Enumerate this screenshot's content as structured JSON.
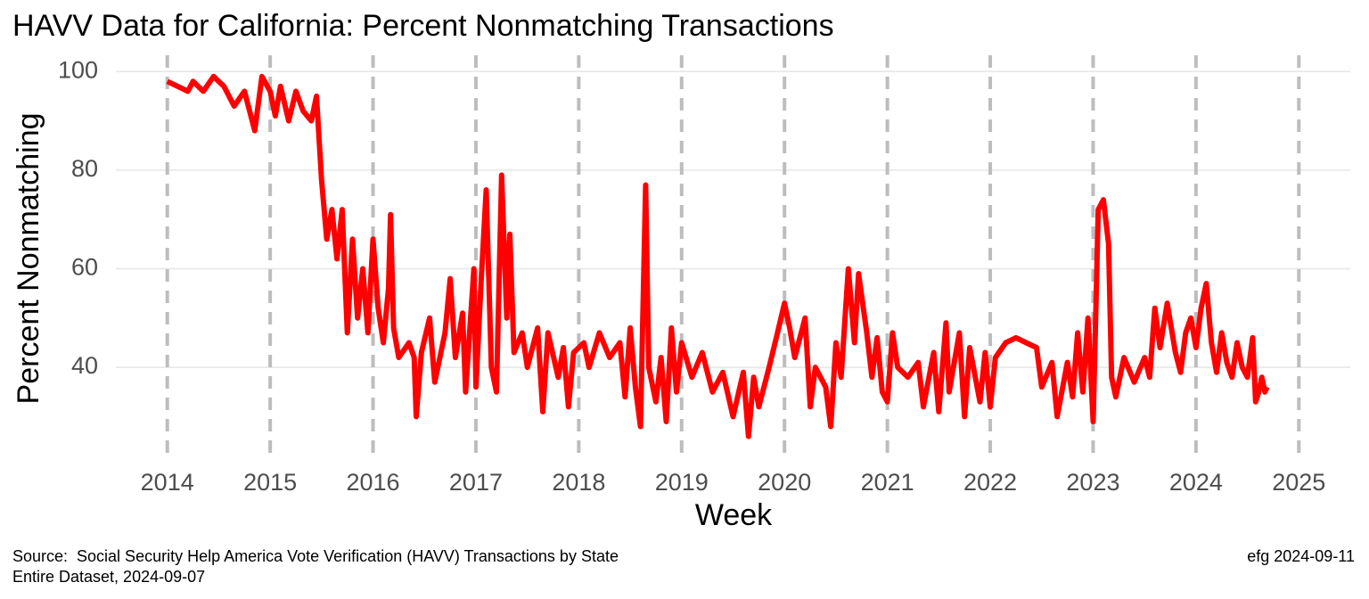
{
  "chart_data": {
    "type": "line",
    "title": "HAVV Data for California:  Percent Nonmatching Transactions",
    "x_label": "Week",
    "y_label": "Percent Nonmatching",
    "caption_left": [
      "Source:  Social Security Help America Vote Verification (HAVV) Transactions by State",
      "Entire Dataset, 2024-09-07"
    ],
    "caption_right": "efg 2024-09-11",
    "color": "#ff0000",
    "grid": true,
    "xlim": [
      2013.5,
      2025.5
    ],
    "ylim": [
      21.4,
      103.3
    ],
    "xticks": [
      2014,
      2015,
      2016,
      2017,
      2018,
      2019,
      2020,
      2021,
      2022,
      2023,
      2024,
      2025
    ],
    "yticks": [
      40,
      60,
      80,
      100
    ],
    "x": [
      2014.0,
      2014.1,
      2014.2,
      2014.25,
      2014.35,
      2014.45,
      2014.55,
      2014.65,
      2014.75,
      2014.85,
      2014.92,
      2015.0,
      2015.05,
      2015.1,
      2015.18,
      2015.25,
      2015.32,
      2015.4,
      2015.45,
      2015.5,
      2015.55,
      2015.6,
      2015.65,
      2015.7,
      2015.75,
      2015.8,
      2015.85,
      2015.9,
      2015.95,
      2016.0,
      2016.05,
      2016.1,
      2016.15,
      2016.17,
      2016.2,
      2016.25,
      2016.35,
      2016.4,
      2016.42,
      2016.47,
      2016.55,
      2016.6,
      2016.7,
      2016.75,
      2016.8,
      2016.87,
      2016.9,
      2016.98,
      2017.0,
      2017.05,
      2017.1,
      2017.15,
      2017.2,
      2017.25,
      2017.3,
      2017.33,
      2017.37,
      2017.45,
      2017.5,
      2017.6,
      2017.65,
      2017.7,
      2017.8,
      2017.85,
      2017.9,
      2017.95,
      2018.05,
      2018.1,
      2018.2,
      2018.3,
      2018.4,
      2018.45,
      2018.5,
      2018.55,
      2018.6,
      2018.65,
      2018.68,
      2018.75,
      2018.8,
      2018.85,
      2018.9,
      2018.95,
      2019.0,
      2019.1,
      2019.2,
      2019.3,
      2019.4,
      2019.5,
      2019.6,
      2019.65,
      2019.7,
      2019.75,
      2019.85,
      2019.92,
      2020.0,
      2020.05,
      2020.1,
      2020.2,
      2020.25,
      2020.3,
      2020.4,
      2020.45,
      2020.5,
      2020.55,
      2020.62,
      2020.68,
      2020.72,
      2020.8,
      2020.85,
      2020.9,
      2020.95,
      2021.0,
      2021.05,
      2021.1,
      2021.2,
      2021.3,
      2021.35,
      2021.45,
      2021.5,
      2021.57,
      2021.6,
      2021.7,
      2021.75,
      2021.8,
      2021.9,
      2021.95,
      2022.0,
      2022.05,
      2022.15,
      2022.25,
      2022.35,
      2022.45,
      2022.5,
      2022.6,
      2022.65,
      2022.75,
      2022.8,
      2022.85,
      2022.9,
      2022.95,
      2023.0,
      2023.02,
      2023.05,
      2023.1,
      2023.15,
      2023.18,
      2023.22,
      2023.3,
      2023.4,
      2023.5,
      2023.55,
      2023.6,
      2023.65,
      2023.72,
      2023.8,
      2023.85,
      2023.9,
      2023.95,
      2024.0,
      2024.05,
      2024.1,
      2024.15,
      2024.2,
      2024.25,
      2024.3,
      2024.35,
      2024.4,
      2024.45,
      2024.5,
      2024.55,
      2024.58,
      2024.61,
      2024.64,
      2024.67,
      2024.69
    ],
    "values": [
      98,
      97,
      96,
      98,
      96,
      99,
      97,
      93,
      96,
      88,
      99,
      96,
      91,
      97,
      90,
      96,
      92,
      90,
      95,
      78,
      66,
      72,
      62,
      72,
      47,
      66,
      50,
      60,
      47,
      66,
      52,
      45,
      56,
      71,
      48,
      42,
      45,
      42,
      30,
      43,
      50,
      37,
      47,
      58,
      42,
      51,
      35,
      60,
      36,
      57,
      76,
      40,
      35,
      79,
      50,
      67,
      43,
      47,
      40,
      48,
      31,
      47,
      38,
      44,
      32,
      43,
      45,
      40,
      47,
      42,
      45,
      34,
      48,
      36,
      28,
      77,
      40,
      33,
      42,
      29,
      48,
      35,
      45,
      38,
      43,
      35,
      39,
      30,
      39,
      26,
      38,
      32,
      40,
      46,
      53,
      48,
      42,
      50,
      32,
      40,
      36,
      28,
      45,
      38,
      60,
      45,
      59,
      47,
      38,
      46,
      35,
      33,
      47,
      40,
      38,
      41,
      32,
      43,
      31,
      49,
      35,
      47,
      30,
      44,
      33,
      43,
      32,
      42,
      45,
      46,
      45,
      44,
      36,
      41,
      30,
      41,
      34,
      47,
      35,
      50,
      29,
      46,
      72,
      74,
      65,
      38,
      34,
      42,
      37,
      42,
      38,
      52,
      44,
      53,
      43,
      39,
      47,
      50,
      44,
      52,
      57,
      45,
      39,
      47,
      41,
      38,
      45,
      40,
      38,
      46,
      33,
      35,
      38,
      35,
      36
    ]
  }
}
